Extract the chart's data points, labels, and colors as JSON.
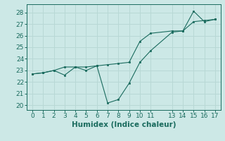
{
  "line1_x": [
    0,
    1,
    2,
    3,
    4,
    5,
    6,
    7,
    8,
    9,
    10,
    11,
    13,
    14,
    15,
    16,
    17
  ],
  "line1_y": [
    22.7,
    22.8,
    23.0,
    23.3,
    23.3,
    23.3,
    23.4,
    23.5,
    23.6,
    23.7,
    25.5,
    26.2,
    26.4,
    26.4,
    27.2,
    27.3,
    27.4
  ],
  "line2_x": [
    0,
    1,
    2,
    3,
    4,
    5,
    6,
    7,
    8,
    9,
    10,
    11,
    13,
    14,
    15,
    16,
    17
  ],
  "line2_y": [
    22.7,
    22.8,
    23.0,
    22.6,
    23.3,
    23.0,
    23.4,
    20.2,
    20.5,
    21.9,
    23.7,
    24.7,
    26.3,
    26.4,
    28.1,
    27.2,
    27.4
  ],
  "line_color": "#1a6b5e",
  "bg_color": "#cce8e6",
  "grid_color": "#b8d8d5",
  "xlabel": "Humidex (Indice chaleur)",
  "xticks": [
    0,
    1,
    2,
    3,
    4,
    5,
    6,
    7,
    8,
    9,
    10,
    11,
    13,
    14,
    15,
    16,
    17
  ],
  "yticks": [
    20,
    21,
    22,
    23,
    24,
    25,
    26,
    27,
    28
  ],
  "ylim": [
    19.6,
    28.7
  ],
  "xlim": [
    -0.5,
    17.5
  ],
  "tick_fontsize": 6.5,
  "xlabel_fontsize": 7.5
}
